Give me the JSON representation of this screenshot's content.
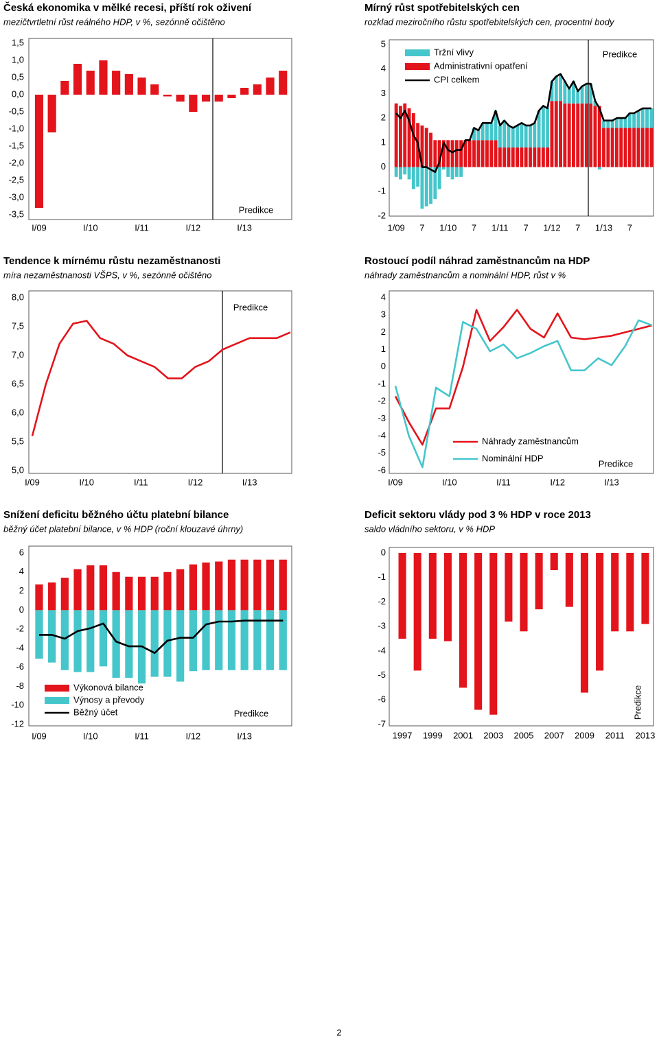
{
  "chart_data": [
    {
      "type": "bar",
      "title": "Česká ekonomika v mělké recesi, příští rok oživení",
      "subtitle": "mezičtvrtletní růst reálného HDP, v %, sezónně očištěno",
      "categories": [
        "I/09",
        null,
        null,
        null,
        "I/10",
        null,
        null,
        null,
        "I/11",
        null,
        null,
        null,
        "I/12",
        null,
        null,
        null,
        "I/13",
        null,
        null,
        null
      ],
      "values": [
        -3.3,
        -1.1,
        0.4,
        0.9,
        0.7,
        1.0,
        0.7,
        0.6,
        0.5,
        0.3,
        -0.05,
        -0.2,
        -0.5,
        -0.2,
        -0.2,
        -0.1,
        0.2,
        0.3,
        0.5,
        0.7
      ],
      "color": "#e3141b",
      "ylim": [
        -3.5,
        1.5
      ],
      "yticks": [
        {
          "value": 1.5,
          "label": "1,5"
        },
        {
          "value": 1.0,
          "label": "1,0"
        },
        {
          "value": 0.5,
          "label": "0,5"
        },
        {
          "value": 0,
          "label": "0,0"
        },
        {
          "value": -0.5,
          "label": "-0,5"
        },
        {
          "value": -1.0,
          "label": "-1,0"
        },
        {
          "value": -1.5,
          "label": "-1,5"
        },
        {
          "value": -2.0,
          "label": "-2,0"
        },
        {
          "value": -2.5,
          "label": "-2,5"
        },
        {
          "value": -3.0,
          "label": "-3,0"
        },
        {
          "value": -3.5,
          "label": "-3,5"
        }
      ],
      "annotation": "Predikce"
    },
    {
      "type": "combo",
      "title": "Mírný růst spotřebitelských cen",
      "subtitle": "rozklad meziročního růstu spotřebitelských cen, procentní body",
      "categories": [
        "1/09",
        null,
        null,
        null,
        null,
        null,
        "7",
        null,
        null,
        null,
        null,
        null,
        "1/10",
        null,
        null,
        null,
        null,
        null,
        "7",
        null,
        null,
        null,
        null,
        null,
        "1/11",
        null,
        null,
        null,
        null,
        null,
        "7",
        null,
        null,
        null,
        null,
        null,
        "1/12",
        null,
        null,
        null,
        null,
        null,
        "7",
        null,
        null,
        null,
        null,
        null,
        "1/13",
        null,
        null,
        null,
        null,
        null,
        "7",
        null,
        null,
        null,
        null,
        null
      ],
      "series": [
        {
          "name": "Tržní vlivy",
          "type": "bar",
          "color": "#45c6cb",
          "values": [
            -0.4,
            -0.5,
            -0.3,
            -0.5,
            -0.9,
            -0.8,
            -1.7,
            -1.6,
            -1.5,
            -1.3,
            -0.9,
            -0.1,
            -0.4,
            -0.5,
            -0.4,
            -0.4,
            0.0,
            0.0,
            0.5,
            0.4,
            0.7,
            0.7,
            0.7,
            1.2,
            0.9,
            1.1,
            0.9,
            0.8,
            0.9,
            1.0,
            0.9,
            0.9,
            1.0,
            1.5,
            1.7,
            1.6,
            0.8,
            1.0,
            1.1,
            0.9,
            0.6,
            0.9,
            0.5,
            0.7,
            0.8,
            0.8,
            0.2,
            -0.1,
            0.3,
            0.3,
            0.3,
            0.4,
            0.4,
            0.4,
            0.6,
            0.6,
            0.7,
            0.8,
            0.8,
            0.8
          ]
        },
        {
          "name": "Administrativní opatření",
          "type": "bar",
          "color": "#e3141b",
          "values": [
            2.6,
            2.5,
            2.6,
            2.4,
            2.2,
            1.8,
            1.7,
            1.6,
            1.4,
            1.1,
            1.1,
            1.1,
            1.1,
            1.1,
            1.1,
            1.1,
            1.1,
            1.1,
            1.1,
            1.1,
            1.1,
            1.1,
            1.1,
            1.1,
            0.8,
            0.8,
            0.8,
            0.8,
            0.8,
            0.8,
            0.8,
            0.8,
            0.8,
            0.8,
            0.8,
            0.8,
            2.7,
            2.7,
            2.7,
            2.6,
            2.6,
            2.6,
            2.6,
            2.6,
            2.6,
            2.6,
            2.5,
            2.5,
            1.6,
            1.6,
            1.6,
            1.6,
            1.6,
            1.6,
            1.6,
            1.6,
            1.6,
            1.6,
            1.6,
            1.6
          ]
        },
        {
          "name": "CPI celkem",
          "type": "line",
          "color": "#000000",
          "values": [
            2.2,
            2.0,
            2.3,
            1.9,
            1.3,
            1.0,
            0.0,
            0.0,
            -0.1,
            -0.2,
            0.2,
            1.0,
            0.7,
            0.6,
            0.7,
            0.7,
            1.1,
            1.1,
            1.6,
            1.5,
            1.8,
            1.8,
            1.8,
            2.3,
            1.7,
            1.9,
            1.7,
            1.6,
            1.7,
            1.8,
            1.7,
            1.7,
            1.8,
            2.3,
            2.5,
            2.4,
            3.5,
            3.7,
            3.8,
            3.5,
            3.2,
            3.5,
            3.1,
            3.3,
            3.4,
            3.4,
            2.7,
            2.4,
            1.9,
            1.9,
            1.9,
            2.0,
            2.0,
            2.0,
            2.2,
            2.2,
            2.3,
            2.4,
            2.4,
            2.4
          ]
        }
      ],
      "ylim": [
        -2,
        5
      ],
      "yticks": [
        5,
        4,
        3,
        2,
        1,
        0,
        -1,
        -2
      ],
      "annotation": "Predikce"
    },
    {
      "type": "line",
      "title": "Tendence k mírnému růstu nezaměstnanosti",
      "subtitle": "míra nezaměstnanosti VŠPS, v %, sezónně očištěno",
      "categories": [
        "I/09",
        null,
        null,
        null,
        "I/10",
        null,
        null,
        null,
        "I/11",
        null,
        null,
        null,
        "I/12",
        null,
        null,
        null,
        "I/13",
        null,
        null,
        null
      ],
      "series": [
        {
          "color": "#e3141b",
          "values": [
            5.6,
            6.5,
            7.2,
            7.55,
            7.6,
            7.3,
            7.2,
            7.0,
            6.9,
            6.8,
            6.6,
            6.6,
            6.8,
            6.9,
            7.1,
            7.2,
            7.3,
            7.3,
            7.3,
            7.4
          ]
        }
      ],
      "ylim": [
        5.0,
        8.0
      ],
      "yticks": [
        {
          "value": 8.0,
          "label": "8,0"
        },
        {
          "value": 7.5,
          "label": "7,5"
        },
        {
          "value": 7.0,
          "label": "7,0"
        },
        {
          "value": 6.5,
          "label": "6,5"
        },
        {
          "value": 6.0,
          "label": "6,0"
        },
        {
          "value": 5.5,
          "label": "5,5"
        },
        {
          "value": 5.0,
          "label": "5,0"
        }
      ],
      "annotation": "Predikce"
    },
    {
      "type": "line",
      "title": "Rostoucí podíl náhrad zaměstnancům na HDP",
      "subtitle": "náhrady zaměstnancům a nominální HDP, růst v %",
      "categories": [
        "I/09",
        null,
        null,
        null,
        "I/10",
        null,
        null,
        null,
        "I/11",
        null,
        null,
        null,
        "I/12",
        null,
        null,
        null,
        "I/13",
        null,
        null,
        null
      ],
      "series": [
        {
          "name": "Náhrady zaměstnancům",
          "color": "#e3141b",
          "values": [
            -1.7,
            -3.2,
            -4.5,
            -2.4,
            -2.4,
            0.0,
            3.3,
            1.5,
            2.3,
            3.3,
            2.2,
            1.7,
            3.1,
            1.7,
            1.6,
            1.7,
            1.8,
            2.0,
            2.2,
            2.4
          ]
        },
        {
          "name": "Nominální HDP",
          "color": "#45c6cb",
          "values": [
            -1.1,
            -4.0,
            -5.8,
            -1.2,
            -1.7,
            2.6,
            2.2,
            0.9,
            1.3,
            0.5,
            0.8,
            1.2,
            1.5,
            -0.2,
            -0.2,
            0.5,
            0.1,
            1.2,
            2.7,
            2.4
          ]
        }
      ],
      "ylim": [
        -6,
        4
      ],
      "yticks": [
        4,
        3,
        2,
        1,
        0,
        -1,
        -2,
        -3,
        -4,
        -5,
        -6
      ],
      "annotation": "Predikce"
    },
    {
      "type": "combo",
      "title": "Snížení deficitu běžného účtu platební bilance",
      "subtitle": "běžný účet platební bilance, v % HDP (roční klouzavé úhrny)",
      "categories": [
        "I/09",
        null,
        null,
        null,
        "I/10",
        null,
        null,
        null,
        "I/11",
        null,
        null,
        null,
        "I/12",
        null,
        null,
        null,
        "I/13",
        null,
        null,
        null
      ],
      "series": [
        {
          "name": "Výkonová bilance",
          "type": "bar",
          "color": "#e3141b",
          "values": [
            2.7,
            2.9,
            3.4,
            4.3,
            4.7,
            4.7,
            4.0,
            3.5,
            3.5,
            3.5,
            4.0,
            4.3,
            4.8,
            5.0,
            5.1,
            5.3,
            5.3,
            5.3,
            5.3,
            5.3
          ]
        },
        {
          "name": "Výnosy a převody",
          "type": "bar",
          "color": "#45c6cb",
          "values": [
            -5.1,
            -5.5,
            -6.3,
            -6.5,
            -6.5,
            -5.9,
            -7.1,
            -7.1,
            -7.7,
            -7.0,
            -7.0,
            -7.5,
            -6.4,
            -6.3,
            -6.3,
            -6.3,
            -6.3,
            -6.3,
            -6.3,
            -6.3
          ]
        },
        {
          "name": "Běžný účet",
          "type": "line",
          "color": "#000000",
          "values": [
            -2.6,
            -2.6,
            -3.0,
            -2.2,
            -1.9,
            -1.4,
            -3.3,
            -3.8,
            -3.8,
            -4.5,
            -3.2,
            -2.9,
            -2.9,
            -1.5,
            -1.2,
            -1.2,
            -1.1,
            -1.1,
            -1.1,
            -1.1
          ]
        }
      ],
      "ylim": [
        -12,
        6
      ],
      "yticks": [
        6,
        4,
        2,
        0,
        -2,
        -4,
        -6,
        -8,
        -10,
        -12
      ],
      "annotation": "Predikce"
    },
    {
      "type": "bar",
      "title": "Deficit sektoru vlády pod 3 % HDP v roce 2013",
      "subtitle": "saldo vládního sektoru, v % HDP",
      "categories": [
        "1997",
        null,
        "1999",
        null,
        "2001",
        null,
        "2003",
        null,
        "2005",
        null,
        "2007",
        null,
        "2009",
        null,
        "2011",
        null,
        "2013"
      ],
      "values": [
        -3.5,
        -4.8,
        -3.5,
        -3.6,
        -5.5,
        -6.4,
        -6.6,
        -2.8,
        -3.2,
        -2.3,
        -0.7,
        -2.2,
        -5.7,
        -4.8,
        -3.2,
        -3.2,
        -2.9
      ],
      "color": "#e3141b",
      "ylim": [
        -7,
        0
      ],
      "yticks": [
        0,
        -1,
        -2,
        -3,
        -4,
        -5,
        -6,
        -7
      ],
      "annotation": "Predikce"
    }
  ],
  "page_number": "2"
}
